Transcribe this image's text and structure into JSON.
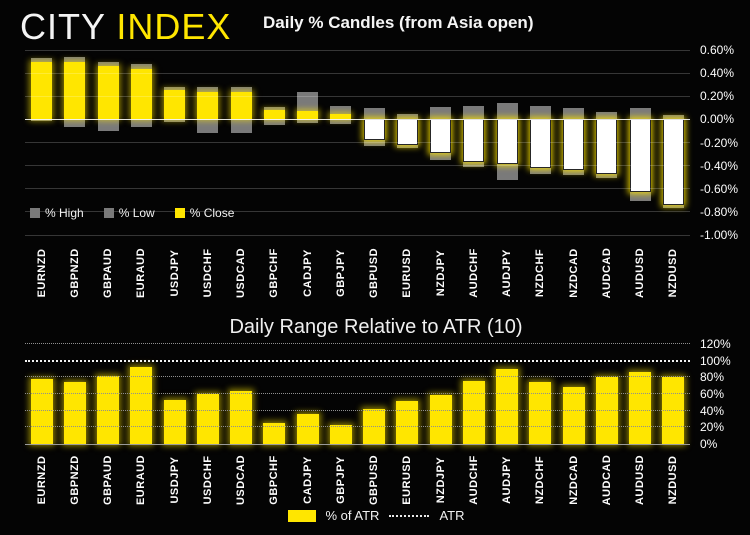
{
  "logo": {
    "city": "CITY ",
    "index": "INDEX",
    "accent_color": "#FFE600"
  },
  "colors": {
    "background": "#040404",
    "bar_yellow": "#FFE600",
    "wick_gray": "#7A7A7A",
    "negative_body": "#FFFFFF",
    "text": "#F5F5F5"
  },
  "chart_data": [
    {
      "type": "bar",
      "subtype": "open-anchored-candles",
      "title": "Daily % Candles (from Asia open)",
      "categories": [
        "EURNZD",
        "GBPNZD",
        "GBPAUD",
        "EURAUD",
        "USDJPY",
        "USDCHF",
        "USDCAD",
        "GBPCHF",
        "CADJPY",
        "GBPJPY",
        "GBPUSD",
        "EURUSD",
        "NZDJPY",
        "AUDCHF",
        "AUDJPY",
        "NZDCHF",
        "NZDCAD",
        "AUDCAD",
        "AUDUSD",
        "NZDUSD"
      ],
      "series": [
        {
          "name": "% High",
          "values": [
            0.53,
            0.54,
            0.5,
            0.48,
            0.28,
            0.28,
            0.28,
            0.11,
            0.24,
            0.12,
            0.1,
            0.05,
            0.11,
            0.12,
            0.14,
            0.12,
            0.1,
            0.06,
            0.1,
            0.04
          ]
        },
        {
          "name": "% Low",
          "values": [
            -0.01,
            -0.07,
            -0.1,
            -0.07,
            -0.02,
            -0.12,
            -0.12,
            -0.05,
            -0.03,
            -0.04,
            -0.23,
            -0.25,
            -0.35,
            -0.41,
            -0.52,
            -0.47,
            -0.48,
            -0.51,
            -0.71,
            -0.77
          ]
        },
        {
          "name": "% Close",
          "values": [
            0.5,
            0.5,
            0.46,
            0.44,
            0.25,
            0.24,
            0.24,
            0.08,
            0.07,
            0.05,
            -0.18,
            -0.22,
            -0.29,
            -0.37,
            -0.39,
            -0.42,
            -0.44,
            -0.47,
            -0.63,
            -0.74
          ]
        }
      ],
      "open_baseline": 0,
      "ylim": [
        -1.0,
        0.6
      ],
      "ytick_labels": [
        "0.60%",
        "0.40%",
        "0.20%",
        "0.00%",
        "-0.20%",
        "-0.40%",
        "-0.60%",
        "-0.80%",
        "-1.00%"
      ],
      "ytick_values": [
        0.6,
        0.4,
        0.2,
        0.0,
        -0.2,
        -0.4,
        -0.6,
        -0.8,
        -1.0
      ],
      "grid": true,
      "legend_position": "bottom-left"
    },
    {
      "type": "bar",
      "title": "Daily Range Relative to ATR (10)",
      "categories": [
        "EURNZD",
        "GBPNZD",
        "GBPAUD",
        "EURAUD",
        "USDJPY",
        "USDCHF",
        "USDCAD",
        "GBPCHF",
        "CADJPY",
        "GBPJPY",
        "GBPUSD",
        "EURUSD",
        "NZDJPY",
        "AUDCHF",
        "AUDJPY",
        "NZDCHF",
        "NZDCAD",
        "AUDCAD",
        "AUDUSD",
        "NZDUSD"
      ],
      "values": [
        78,
        74,
        82,
        92,
        53,
        60,
        64,
        25,
        36,
        23,
        42,
        52,
        59,
        76,
        90,
        74,
        69,
        80,
        86,
        81
      ],
      "ylim": [
        0,
        120
      ],
      "ytick_labels": [
        "120%",
        "100%",
        "80%",
        "60%",
        "40%",
        "20%",
        "0%"
      ],
      "ytick_values": [
        120,
        100,
        80,
        60,
        40,
        20,
        0
      ],
      "atr_line_value": 100,
      "grid": true,
      "legend": [
        {
          "label": "% of ATR",
          "swatch": "yellow-bar"
        },
        {
          "label": "ATR",
          "swatch": "dotted-line"
        }
      ],
      "legend_position": "bottom-center"
    }
  ]
}
